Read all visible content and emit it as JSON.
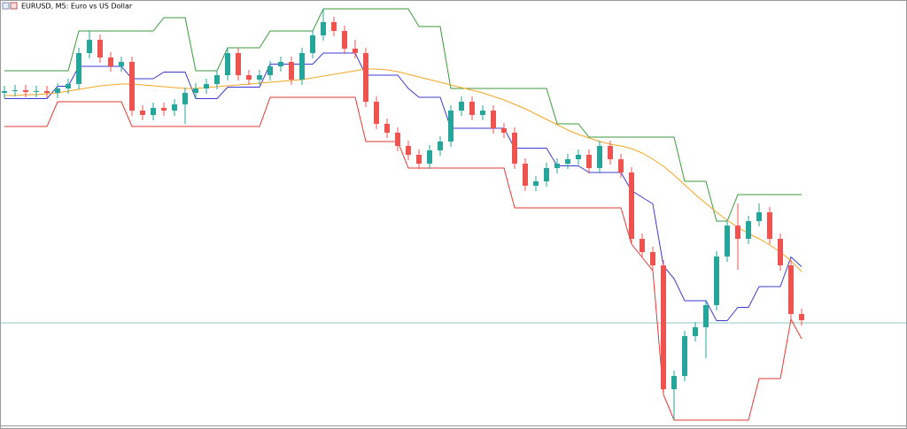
{
  "chart_data": {
    "type": "candlestick",
    "title": "EURUSD, M5:  Euro vs US Dollar",
    "ylim": [
      0,
      485
    ],
    "up_color": "#26a69a",
    "down_color": "#ef5350",
    "open": [
      380,
      382,
      383,
      381,
      382,
      380,
      385,
      390,
      425,
      440,
      420,
      410,
      415,
      360,
      355,
      363,
      360,
      367,
      380,
      385,
      390,
      400,
      425,
      400,
      395,
      400,
      410,
      415,
      395,
      425,
      445,
      460,
      450,
      430,
      425,
      370,
      345,
      335,
      320,
      310,
      300,
      315,
      325,
      360,
      370,
      355,
      360,
      340,
      335,
      300,
      275,
      280,
      295,
      300,
      305,
      310,
      295,
      320,
      305,
      290,
      215,
      200,
      185,
      45,
      60,
      105,
      115,
      140,
      195,
      230,
      215,
      235,
      245,
      215,
      185,
      130
    ],
    "high": [
      388,
      389,
      389,
      388,
      388,
      391,
      396,
      431,
      450,
      446,
      426,
      421,
      421,
      366,
      369,
      369,
      373,
      386,
      391,
      396,
      406,
      431,
      431,
      406,
      406,
      416,
      421,
      421,
      431,
      451,
      475,
      466,
      456,
      440,
      431,
      376,
      351,
      341,
      326,
      316,
      321,
      331,
      366,
      376,
      376,
      366,
      366,
      346,
      341,
      306,
      286,
      301,
      306,
      311,
      316,
      316,
      326,
      326,
      311,
      296,
      221,
      206,
      191,
      66,
      111,
      121,
      146,
      201,
      236,
      255,
      241,
      255,
      251,
      221,
      191,
      136
    ],
    "low": [
      374,
      376,
      375,
      375,
      374,
      374,
      379,
      384,
      419,
      414,
      404,
      404,
      354,
      349,
      349,
      354,
      354,
      345,
      374,
      379,
      384,
      394,
      394,
      389,
      389,
      394,
      404,
      389,
      389,
      419,
      439,
      444,
      424,
      419,
      364,
      339,
      329,
      314,
      304,
      294,
      294,
      309,
      319,
      354,
      349,
      349,
      334,
      329,
      294,
      269,
      269,
      274,
      289,
      294,
      299,
      289,
      289,
      299,
      284,
      209,
      194,
      179,
      39,
      10,
      54,
      99,
      80,
      134,
      189,
      180,
      209,
      229,
      209,
      179,
      124,
      117
    ],
    "close": [
      382,
      383,
      381,
      382,
      380,
      385,
      390,
      425,
      440,
      420,
      410,
      415,
      360,
      355,
      363,
      360,
      367,
      380,
      385,
      390,
      400,
      425,
      400,
      395,
      400,
      410,
      415,
      395,
      425,
      445,
      460,
      450,
      430,
      425,
      370,
      345,
      335,
      320,
      310,
      300,
      315,
      325,
      360,
      370,
      355,
      360,
      340,
      335,
      300,
      275,
      280,
      295,
      300,
      305,
      310,
      295,
      320,
      305,
      290,
      215,
      200,
      185,
      45,
      60,
      105,
      115,
      140,
      195,
      230,
      215,
      235,
      245,
      215,
      185,
      130,
      123
    ],
    "series": [
      {
        "color": "#3c9a3c",
        "values": [
          405,
          405,
          405,
          405,
          405,
          405,
          405,
          450,
          450,
          450,
          450,
          450,
          450,
          450,
          450,
          465,
          465,
          465,
          405,
          405,
          405,
          431,
          431,
          431,
          431,
          450,
          450,
          450,
          450,
          450,
          475,
          475,
          475,
          475,
          475,
          475,
          475,
          475,
          475,
          455,
          455,
          455,
          385,
          385,
          385,
          385,
          385,
          385,
          385,
          385,
          385,
          385,
          345,
          345,
          345,
          330,
          330,
          330,
          330,
          330,
          330,
          330,
          330,
          330,
          280,
          280,
          280,
          235,
          235,
          265,
          265,
          265,
          265,
          265,
          265,
          265
        ]
      },
      {
        "color": "#3b3bd4",
        "values": [
          373.5,
          373.5,
          373.5,
          373.5,
          373.5,
          387.5,
          387.5,
          410,
          410,
          410,
          410,
          410,
          396,
          396,
          396,
          403.5,
          403.5,
          403.5,
          373.5,
          373.5,
          373.5,
          386.5,
          386.5,
          386.5,
          386.5,
          412.5,
          412.5,
          412.5,
          412.5,
          412.5,
          425,
          425,
          425,
          425,
          400,
          400,
          400,
          400,
          385,
          375,
          375,
          375,
          340,
          340,
          340,
          340,
          340,
          340,
          317.5,
          317.5,
          317.5,
          317.5,
          297.5,
          297.5,
          297.5,
          290,
          290,
          290,
          290,
          269.5,
          262,
          254.5,
          184.5,
          170,
          145,
          145,
          145,
          122.5,
          122.5,
          137.5,
          137.5,
          161,
          161,
          161,
          194.5,
          183.5
        ]
      },
      {
        "color": "#e53935",
        "values": [
          342,
          342,
          342,
          342,
          342,
          370,
          370,
          370,
          370,
          370,
          370,
          370,
          342,
          342,
          342,
          342,
          342,
          342,
          342,
          342,
          342,
          342,
          342,
          342,
          342,
          375,
          375,
          375,
          375,
          375,
          375,
          375,
          375,
          375,
          325,
          325,
          325,
          325,
          295,
          295,
          295,
          295,
          295,
          295,
          295,
          295,
          295,
          295,
          250,
          250,
          250,
          250,
          250,
          250,
          250,
          250,
          250,
          250,
          250,
          209,
          194,
          179,
          39,
          10,
          10,
          10,
          10,
          10,
          10,
          10,
          10,
          57,
          57,
          57,
          124,
          102
        ]
      },
      {
        "color": "#f5a623",
        "values": [
          377,
          377,
          378,
          378,
          379,
          380,
          382,
          384,
          386,
          388,
          389,
          390,
          390,
          389,
          388,
          387,
          386,
          385,
          385,
          386,
          387,
          388,
          389,
          390,
          391,
          392,
          393,
          394,
          395,
          397,
          399,
          401,
          403,
          405,
          407,
          407,
          406,
          404,
          401,
          398,
          395,
          392,
          389,
          386,
          383,
          380,
          376,
          372,
          367,
          362,
          356,
          350,
          344,
          338,
          333,
          329,
          325,
          322,
          320,
          317,
          312,
          305,
          297,
          287,
          276,
          265,
          255,
          245,
          236,
          228,
          221,
          215,
          208,
          200,
          190,
          178
        ]
      }
    ],
    "hline": {
      "value": 120,
      "color": "#8fc9c9"
    }
  }
}
